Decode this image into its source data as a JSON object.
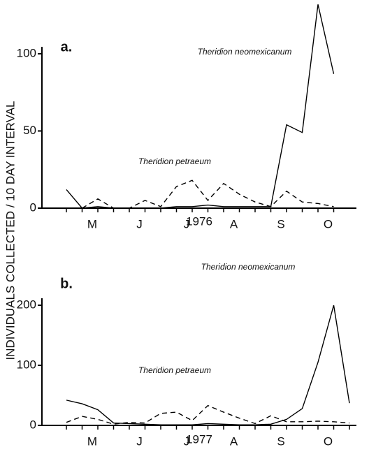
{
  "ylabel": "INDIVIDUALS COLLECTED / 10 DAY INTERVAL",
  "chart_data": [
    {
      "type": "line",
      "panel": "a.",
      "xlabel": "1976",
      "categories": [
        null,
        null,
        "M",
        null,
        null,
        "J",
        null,
        null,
        "J",
        null,
        null,
        "A",
        null,
        null,
        "S",
        null,
        null,
        "O"
      ],
      "ylim": [
        0,
        100
      ],
      "yticks": [
        0,
        50,
        100
      ],
      "series": [
        {
          "name": "Theridion neomexicanum",
          "color": "#000000",
          "dash": false,
          "values": [
            12,
            0,
            1,
            0,
            0,
            0,
            0,
            1,
            1,
            2,
            1,
            1,
            1,
            1,
            54,
            49,
            132,
            87
          ]
        },
        {
          "name": "Theridion petraeum",
          "color": "#000000",
          "dash": true,
          "values": [
            null,
            0,
            6,
            0,
            0,
            5,
            1,
            14,
            18,
            5,
            16,
            9,
            4,
            1,
            11,
            4,
            3,
            1
          ]
        }
      ]
    },
    {
      "type": "line",
      "panel": "b.",
      "xlabel": "1977",
      "categories": [
        null,
        null,
        "M",
        null,
        null,
        "J",
        null,
        null,
        "J",
        null,
        null,
        "A",
        null,
        null,
        "S",
        null,
        null,
        "O",
        null
      ],
      "ylim": [
        0,
        200
      ],
      "yticks": [
        0,
        100,
        200
      ],
      "series": [
        {
          "name": "Theridion neomexicanum",
          "color": "#000000",
          "dash": false,
          "values": [
            42,
            36,
            26,
            4,
            3,
            2,
            1,
            1,
            1,
            3,
            2,
            1,
            1,
            2,
            10,
            28,
            105,
            200,
            37
          ]
        },
        {
          "name": "Theridion petraeum",
          "color": "#000000",
          "dash": true,
          "values": [
            5,
            15,
            10,
            2,
            5,
            4,
            20,
            22,
            8,
            33,
            22,
            12,
            3,
            16,
            6,
            6,
            7,
            6,
            4
          ]
        }
      ]
    }
  ]
}
